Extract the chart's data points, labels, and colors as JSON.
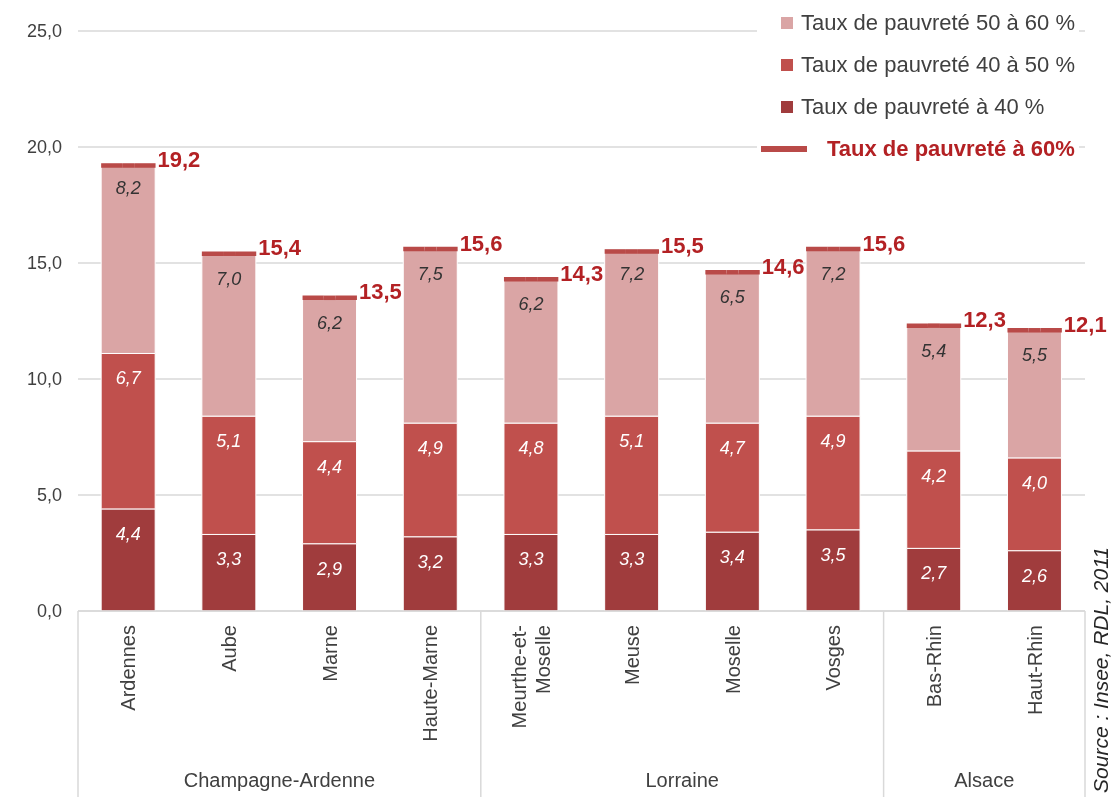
{
  "chart_data": {
    "type": "bar",
    "stacked": true,
    "categories": [
      "Ardennes",
      "Aube",
      "Marne",
      "Haute-Marne",
      "Meurthe-et-Moselle",
      "Meuse",
      "Moselle",
      "Vosges",
      "Bas-Rhin",
      "Haut-Rhin"
    ],
    "series": [
      {
        "name": "Taux de pauvreté à 40 %",
        "color": "#a03c3d",
        "values": [
          4.4,
          3.3,
          2.9,
          3.2,
          3.3,
          3.3,
          3.4,
          3.5,
          2.7,
          2.6
        ],
        "value_labels": [
          "4,4",
          "3,3",
          "2,9",
          "3,2",
          "3,3",
          "3,3",
          "3,4",
          "3,5",
          "2,7",
          "2,6"
        ]
      },
      {
        "name": "Taux de pauvreté 40 à 50 %",
        "color": "#c0504d",
        "values": [
          6.7,
          5.1,
          4.4,
          4.9,
          4.8,
          5.1,
          4.7,
          4.9,
          4.2,
          4.0
        ],
        "value_labels": [
          "6,7",
          "5,1",
          "4,4",
          "4,9",
          "4,8",
          "5,1",
          "4,7",
          "4,9",
          "4,2",
          "4,0"
        ]
      },
      {
        "name": "Taux de pauvreté 50 à 60 %",
        "color": "#daa5a5",
        "values": [
          8.2,
          7.0,
          6.2,
          7.5,
          6.2,
          7.2,
          6.5,
          7.2,
          5.4,
          5.5
        ],
        "value_labels": [
          "8,2",
          "7,0",
          "6,2",
          "7,5",
          "6,2",
          "7,2",
          "6,5",
          "7,2",
          "5,4",
          "5,5"
        ]
      },
      {
        "name": "Taux de pauvreté à 60%",
        "type": "scatter",
        "color": "#b94a48",
        "values": [
          19.2,
          15.4,
          13.5,
          15.6,
          14.3,
          15.5,
          14.6,
          15.6,
          12.3,
          12.1
        ],
        "value_labels": [
          "19,2",
          "15,4",
          "13,5",
          "15,6",
          "14,3",
          "15,5",
          "14,6",
          "15,6",
          "12,3",
          "12,1"
        ]
      }
    ],
    "ylim": [
      0,
      25
    ],
    "yticks": [
      {
        "value": 0,
        "label": "0,0"
      },
      {
        "value": 5,
        "label": "5,0"
      },
      {
        "value": 10,
        "label": "10,0"
      },
      {
        "value": 15,
        "label": "15,0"
      },
      {
        "value": 20,
        "label": "20,0"
      },
      {
        "value": 25,
        "label": "25,0"
      }
    ],
    "grid": "y",
    "legend": "top right",
    "annotations": [
      "Champagne-Ardenne",
      "Lorraine",
      "Alsace",
      "Source : Insee, RDL, 2011"
    ]
  }
}
